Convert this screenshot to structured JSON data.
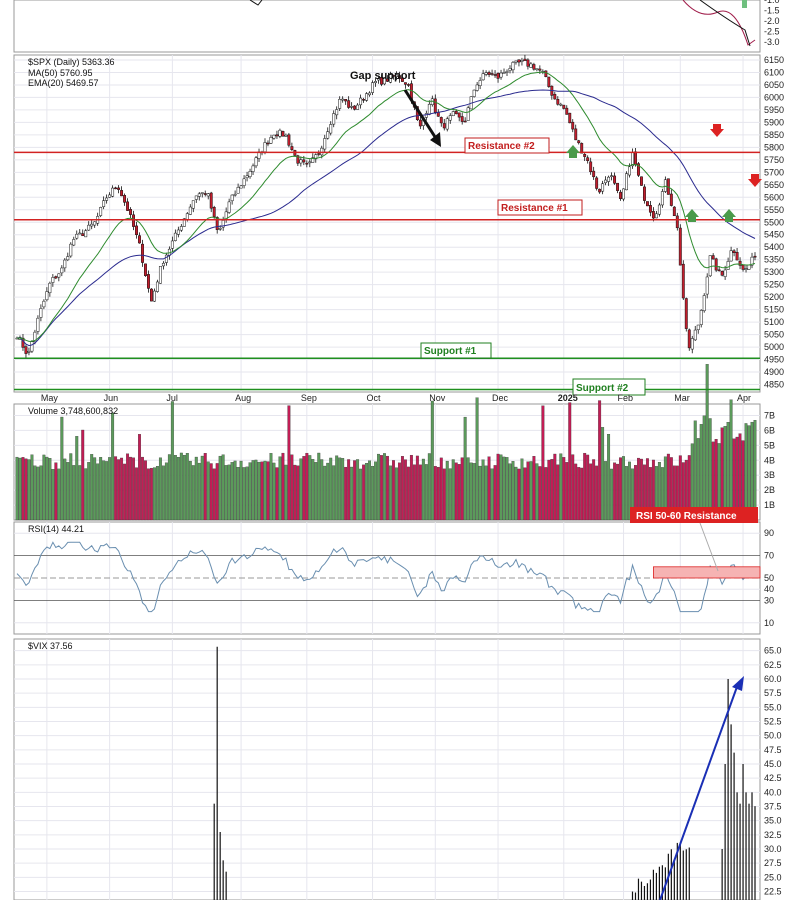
{
  "colors": {
    "up": "#5b9a5b",
    "down": "#c21d55",
    "ma50": "#2b2b8f",
    "ema20": "#2e8b2e",
    "resistance": "#d22222",
    "support": "#1f8f1f",
    "rsi_line": "#6a8fb0",
    "rsi_band": "#f6b3b3",
    "vix_arrow": "#1a2fb5",
    "grid": "#e6e6ee"
  },
  "headers": {
    "price": "$SPX (Daily) 5363.36",
    "ma": "MA(50) 5760.95",
    "ema": "EMA(20) 5469.57",
    "volume": "Volume 3,748,600,832",
    "rsi": "RSI(14) 44.21",
    "vix": "$VIX 37.56"
  },
  "annotations": {
    "gap_support": "Gap support",
    "resistance2": "Resistance #2",
    "resistance1": "Resistance #1",
    "support1": "Support #1",
    "support2": "Support #2",
    "rsi_resistance": "RSI 50-60 Resistance"
  },
  "chart_data": {
    "type": "candlestick",
    "x_month_labels": [
      "May",
      "Jun",
      "Jul",
      "Aug",
      "Sep",
      "Oct",
      "Nov",
      "Dec",
      "2025",
      "Feb",
      "Mar",
      "Apr"
    ],
    "price_ticks": [
      4850,
      4900,
      4950,
      5000,
      5050,
      5100,
      5150,
      5200,
      5250,
      5300,
      5350,
      5400,
      5450,
      5500,
      5550,
      5600,
      5650,
      5700,
      5750,
      5800,
      5850,
      5900,
      5950,
      6000,
      6050,
      6100,
      6150
    ],
    "price_ylim": [
      4820,
      6170
    ],
    "price_close_waypoints": [
      5050,
      4965,
      5130,
      5260,
      5310,
      5430,
      5460,
      5500,
      5600,
      5650,
      5540,
      5400,
      5180,
      5340,
      5430,
      5520,
      5610,
      5620,
      5450,
      5580,
      5650,
      5720,
      5800,
      5860,
      5850,
      5750,
      5720,
      5780,
      5900,
      6000,
      5950,
      6000,
      6060,
      6070,
      6090,
      6050,
      5870,
      6000,
      5880,
      5930,
      5900,
      6050,
      6100,
      6080,
      6120,
      6140,
      6130,
      6100,
      6000,
      5950,
      5830,
      5750,
      5620,
      5700,
      5580,
      5780,
      5610,
      5520,
      5660,
      5500,
      4985,
      5100,
      5360,
      5280,
      5400,
      5300,
      5363.36
    ],
    "resistance_levels": [
      5780,
      5510
    ],
    "support_levels": [
      4955,
      4830
    ],
    "ma50": "5760.95",
    "ema20": "5469.57",
    "volume_ticks": [
      "1B",
      "2B",
      "3B",
      "4B",
      "5B",
      "6B",
      "7B"
    ],
    "volume_ylim": [
      0,
      7.5
    ],
    "rsi_ticks": [
      10,
      30,
      40,
      50,
      70,
      90
    ],
    "rsi_ylim": [
      0,
      100
    ],
    "rsi_resistance_band": [
      50,
      60
    ],
    "vix_ticks": [
      22.5,
      25,
      27.5,
      30,
      32.5,
      35,
      37.5,
      40,
      42.5,
      45,
      47.5,
      50,
      52.5,
      55,
      57.5,
      60,
      62.5,
      65
    ],
    "vix_ylim": [
      21.0,
      66.0
    ]
  }
}
